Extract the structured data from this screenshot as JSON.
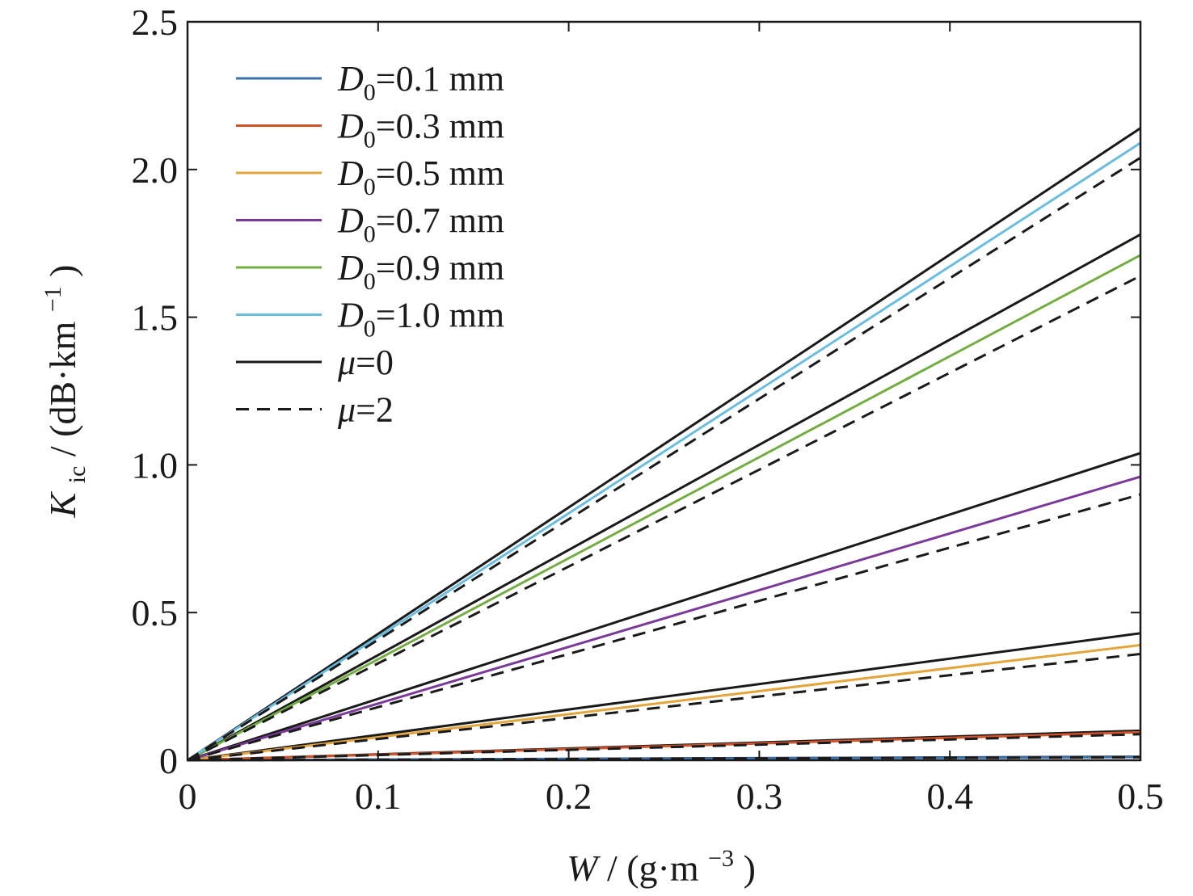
{
  "chart_data": {
    "type": "line",
    "title": "",
    "xlabel": {
      "var": "W",
      "sep": " / (g·m",
      "sup": "−3",
      "close": ")"
    },
    "ylabel": {
      "var": "K",
      "sub": "ic",
      "sep": " / (dB·km",
      "sup": "−1",
      "close": ")"
    },
    "xlim": [
      0,
      0.5
    ],
    "ylim": [
      0,
      2.5
    ],
    "x_ticks": [
      0,
      0.1,
      0.2,
      0.3,
      0.4,
      0.5
    ],
    "x_tick_labels": [
      "0",
      "0.1",
      "0.2",
      "0.3",
      "0.4",
      "0.5"
    ],
    "y_ticks": [
      0,
      0.5,
      1.0,
      1.5,
      2.0,
      2.5
    ],
    "y_tick_labels": [
      "0",
      "0.5",
      "1.0",
      "1.5",
      "2.0",
      "2.5"
    ],
    "grid": false,
    "legend_position": "top-left",
    "legend": [
      {
        "var": "D",
        "sub": "0",
        "text": "=0.1 mm",
        "color": "#3a6fae",
        "dash": "solid"
      },
      {
        "var": "D",
        "sub": "0",
        "text": "=0.3 mm",
        "color": "#d0532a",
        "dash": "solid"
      },
      {
        "var": "D",
        "sub": "0",
        "text": "=0.5 mm",
        "color": "#e3a53c",
        "dash": "solid"
      },
      {
        "var": "D",
        "sub": "0",
        "text": "=0.7 mm",
        "color": "#7b3a98",
        "dash": "solid"
      },
      {
        "var": "D",
        "sub": "0",
        "text": "=0.9 mm",
        "color": "#74ad42",
        "dash": "solid"
      },
      {
        "var": "D",
        "sub": "0",
        "text": "=1.0 mm",
        "color": "#6bbde0",
        "dash": "solid"
      },
      {
        "var": "μ",
        "sub": "",
        "text": "=0",
        "color": "#1a1a1a",
        "dash": "solid"
      },
      {
        "var": "μ",
        "sub": "",
        "text": "=2",
        "color": "#1a1a1a",
        "dash": "dashed"
      }
    ],
    "x": [
      0,
      0.5
    ],
    "series": [
      {
        "name": "D0=0.1 mm, μ=0",
        "color": "#1a1a1a",
        "dash": "solid",
        "values": [
          0,
          0.012
        ]
      },
      {
        "name": "D0=0.1 mm",
        "color": "#3a6fae",
        "dash": "solid",
        "values": [
          0,
          0.011
        ]
      },
      {
        "name": "D0=0.1 mm, μ=2",
        "color": "#1a1a1a",
        "dash": "dashed",
        "values": [
          0,
          0.01
        ]
      },
      {
        "name": "D0=0.3 mm, μ=0",
        "color": "#1a1a1a",
        "dash": "solid",
        "values": [
          0,
          0.1
        ]
      },
      {
        "name": "D0=0.3 mm",
        "color": "#d0532a",
        "dash": "solid",
        "values": [
          0,
          0.095
        ]
      },
      {
        "name": "D0=0.3 mm, μ=2",
        "color": "#1a1a1a",
        "dash": "dashed",
        "values": [
          0,
          0.088
        ]
      },
      {
        "name": "D0=0.5 mm, μ=0",
        "color": "#1a1a1a",
        "dash": "solid",
        "values": [
          0,
          0.43
        ]
      },
      {
        "name": "D0=0.5 mm",
        "color": "#e3a53c",
        "dash": "solid",
        "values": [
          0,
          0.39
        ]
      },
      {
        "name": "D0=0.5 mm, μ=2",
        "color": "#1a1a1a",
        "dash": "dashed",
        "values": [
          0,
          0.36
        ]
      },
      {
        "name": "D0=0.7 mm, μ=0",
        "color": "#1a1a1a",
        "dash": "solid",
        "values": [
          0,
          1.04
        ]
      },
      {
        "name": "D0=0.7 mm",
        "color": "#7b3a98",
        "dash": "solid",
        "values": [
          0,
          0.96
        ]
      },
      {
        "name": "D0=0.7 mm, μ=2",
        "color": "#1a1a1a",
        "dash": "dashed",
        "values": [
          0,
          0.9
        ]
      },
      {
        "name": "D0=0.9 mm, μ=0",
        "color": "#1a1a1a",
        "dash": "solid",
        "values": [
          0,
          1.78
        ]
      },
      {
        "name": "D0=0.9 mm",
        "color": "#74ad42",
        "dash": "solid",
        "values": [
          0,
          1.71
        ]
      },
      {
        "name": "D0=0.9 mm, μ=2",
        "color": "#1a1a1a",
        "dash": "dashed",
        "values": [
          0,
          1.64
        ]
      },
      {
        "name": "D0=1.0 mm, μ=0",
        "color": "#1a1a1a",
        "dash": "solid",
        "values": [
          0,
          2.14
        ]
      },
      {
        "name": "D0=1.0 mm",
        "color": "#6bbde0",
        "dash": "solid",
        "values": [
          0,
          2.09
        ]
      },
      {
        "name": "D0=1.0 mm, μ=2",
        "color": "#1a1a1a",
        "dash": "dashed",
        "values": [
          0,
          2.04
        ]
      }
    ]
  }
}
